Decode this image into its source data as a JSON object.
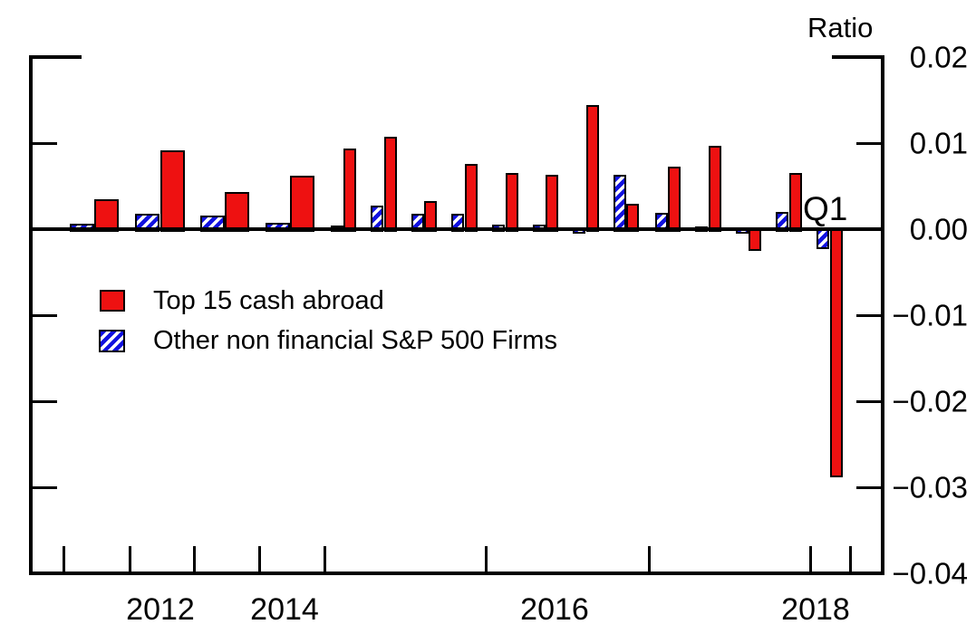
{
  "title": "Ratio",
  "colors": {
    "bar_red": "#EE1111",
    "bar_blue": "#1212E0",
    "hatch_white": "#FFFFFF",
    "line_black": "#000000",
    "background": "#FFFFFF"
  },
  "legend": [
    {
      "label": "Top 15 cash abroad",
      "color": "#EE1111",
      "hatch": false
    },
    {
      "label": "Other non financial S&P 500 Firms",
      "color": "#1212E0",
      "hatch": true
    }
  ],
  "chart_data": {
    "type": "bar",
    "title": "Ratio",
    "ylabel": "Ratio",
    "xlabel": "",
    "ylim": [
      -0.04,
      0.02
    ],
    "grid": false,
    "legend_position": "upper-left-inside",
    "yticks": [
      0.02,
      0.01,
      0.0,
      -0.01,
      -0.02,
      -0.03,
      -0.04
    ],
    "ytick_labels": [
      "0.02",
      "0.01",
      "0.00",
      "−0.01",
      "−0.02",
      "−0.03",
      "−0.04"
    ],
    "xtick_labels": [
      "2012",
      "2014",
      "2016",
      "2018"
    ],
    "frequency_note": "annual bars 2011-2014, quarterly bars 2015-2018Q1",
    "categories": [
      "2011",
      "2012",
      "2013",
      "2014",
      "2015Q1",
      "2015Q2",
      "2015Q3",
      "2015Q4",
      "2016Q1",
      "2016Q2",
      "2016Q3",
      "2016Q4",
      "2017Q1",
      "2017Q2",
      "2017Q3",
      "2017Q4",
      "2018Q1"
    ],
    "series": [
      {
        "name": "Top 15 cash abroad",
        "values": [
          0.0035,
          0.0092,
          0.0043,
          0.0062,
          0.0094,
          0.0107,
          0.0033,
          0.0076,
          0.0065,
          0.0063,
          0.0144,
          0.003,
          0.0073,
          0.0097,
          -0.0023,
          0.0065,
          -0.0286
        ]
      },
      {
        "name": "Other non financial S&P 500 Firms",
        "values": [
          0.0006,
          0.0018,
          0.0016,
          0.0007,
          0.0004,
          0.0027,
          0.0018,
          0.0018,
          0.0005,
          0.0005,
          -0.0003,
          0.0063,
          0.0019,
          0.0002,
          -0.0003,
          0.002,
          -0.0021
        ]
      }
    ],
    "annotation": {
      "text": "Q1",
      "category": "2018Q1"
    }
  }
}
